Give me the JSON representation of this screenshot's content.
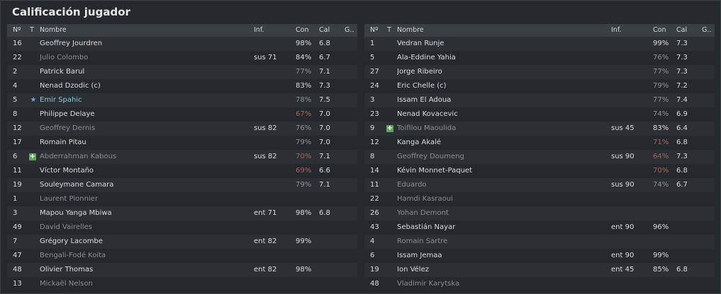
{
  "title": "Calificación jugador",
  "columns": {
    "num": "Nº",
    "t": "T",
    "name": "Nombre",
    "inf": "Inf.",
    "con": "Con",
    "cal": "Cal",
    "g": "G.."
  },
  "colors": {
    "con_red": "#b0605c",
    "con_grey": "#8f9499",
    "highlight": "#7ec8ea",
    "dim": "#8a8f94"
  },
  "left": [
    {
      "num": "16",
      "name": "Geoffrey Jourdren",
      "inf": "",
      "con": "98%",
      "cal": "6.8",
      "style": "",
      "con_style": "",
      "icon": ""
    },
    {
      "num": "22",
      "name": "Julio Colombo",
      "inf": "sus 71",
      "con": "84%",
      "cal": "6.7",
      "style": "dim",
      "con_style": "",
      "icon": ""
    },
    {
      "num": "2",
      "name": "Patrick Barul",
      "inf": "",
      "con": "77%",
      "cal": "7.1",
      "style": "",
      "con_style": "grey",
      "icon": ""
    },
    {
      "num": "4",
      "name": "Nenad Dzodic (c)",
      "inf": "",
      "con": "83%",
      "cal": "7.3",
      "style": "",
      "con_style": "",
      "icon": ""
    },
    {
      "num": "5",
      "name": "Emir Spahic",
      "inf": "",
      "con": "78%",
      "cal": "7.5",
      "style": "hl",
      "con_style": "grey",
      "icon": "star-icon"
    },
    {
      "num": "8",
      "name": "Philippe Delaye",
      "inf": "",
      "con": "67%",
      "cal": "7.0",
      "style": "",
      "con_style": "red",
      "icon": ""
    },
    {
      "num": "12",
      "name": "Geoffrey Dernis",
      "inf": "sus 82",
      "con": "76%",
      "cal": "7.0",
      "style": "dim",
      "con_style": "grey",
      "icon": ""
    },
    {
      "num": "17",
      "name": "Romain Pitau",
      "inf": "",
      "con": "79%",
      "cal": "7.0",
      "style": "",
      "con_style": "grey",
      "icon": ""
    },
    {
      "num": "6",
      "name": "Abderrahman Kabous",
      "inf": "sus 82",
      "con": "70%",
      "cal": "7.1",
      "style": "dim",
      "con_style": "red",
      "icon": "plus-icon"
    },
    {
      "num": "11",
      "name": "Víctor Montaño",
      "inf": "",
      "con": "69%",
      "cal": "6.6",
      "style": "",
      "con_style": "red",
      "icon": ""
    },
    {
      "num": "19",
      "name": "Souleymane Camara",
      "inf": "",
      "con": "79%",
      "cal": "7.1",
      "style": "",
      "con_style": "grey",
      "icon": ""
    },
    {
      "num": "1",
      "name": "Laurent Pionnier",
      "inf": "",
      "con": "",
      "cal": "",
      "style": "dim",
      "con_style": "",
      "icon": ""
    },
    {
      "num": "3",
      "name": "Mapou Yanga Mbiwa",
      "inf": "ent 71",
      "con": "98%",
      "cal": "6.8",
      "style": "",
      "con_style": "",
      "icon": ""
    },
    {
      "num": "49",
      "name": "David Vairelles",
      "inf": "",
      "con": "",
      "cal": "",
      "style": "dim",
      "con_style": "",
      "icon": ""
    },
    {
      "num": "7",
      "name": "Grégory Lacombe",
      "inf": "ent 82",
      "con": "99%",
      "cal": "",
      "style": "",
      "con_style": "",
      "icon": ""
    },
    {
      "num": "47",
      "name": "Bengali-Fodé Koita",
      "inf": "",
      "con": "",
      "cal": "",
      "style": "dim",
      "con_style": "",
      "icon": ""
    },
    {
      "num": "48",
      "name": "Olivier Thomas",
      "inf": "ent 82",
      "con": "98%",
      "cal": "",
      "style": "",
      "con_style": "",
      "icon": ""
    },
    {
      "num": "13",
      "name": "Mickaël Nelson",
      "inf": "",
      "con": "",
      "cal": "",
      "style": "dim",
      "con_style": "",
      "icon": ""
    }
  ],
  "right": [
    {
      "num": "1",
      "name": "Vedran Runje",
      "inf": "",
      "con": "99%",
      "cal": "7.3",
      "style": "",
      "con_style": "",
      "icon": ""
    },
    {
      "num": "5",
      "name": "Ala-Eddine Yahia",
      "inf": "",
      "con": "76%",
      "cal": "7.3",
      "style": "",
      "con_style": "grey",
      "icon": ""
    },
    {
      "num": "27",
      "name": "Jorge Ribeiro",
      "inf": "",
      "con": "77%",
      "cal": "7.3",
      "style": "",
      "con_style": "grey",
      "icon": ""
    },
    {
      "num": "24",
      "name": "Eric Chelle (c)",
      "inf": "",
      "con": "79%",
      "cal": "7.2",
      "style": "",
      "con_style": "grey",
      "icon": ""
    },
    {
      "num": "3",
      "name": "Issam El Adoua",
      "inf": "",
      "con": "77%",
      "cal": "7.4",
      "style": "",
      "con_style": "grey",
      "icon": ""
    },
    {
      "num": "23",
      "name": "Nenad Kovacevic",
      "inf": "",
      "con": "74%",
      "cal": "6.9",
      "style": "",
      "con_style": "grey",
      "icon": ""
    },
    {
      "num": "9",
      "name": "Toifilou Maoulida",
      "inf": "sus 45",
      "con": "83%",
      "cal": "6.4",
      "style": "dim",
      "con_style": "",
      "icon": "plus-icon"
    },
    {
      "num": "12",
      "name": "Kanga Akalé",
      "inf": "",
      "con": "71%",
      "cal": "6.8",
      "style": "",
      "con_style": "red",
      "icon": ""
    },
    {
      "num": "8",
      "name": "Geoffrey Doumeng",
      "inf": "sus 90",
      "con": "64%",
      "cal": "7.3",
      "style": "dim",
      "con_style": "red",
      "icon": ""
    },
    {
      "num": "14",
      "name": "Kévin Monnet-Paquet",
      "inf": "",
      "con": "70%",
      "cal": "6.8",
      "style": "",
      "con_style": "red",
      "icon": ""
    },
    {
      "num": "11",
      "name": "Eduardo",
      "inf": "sus 90",
      "con": "74%",
      "cal": "6.7",
      "style": "dim",
      "con_style": "grey",
      "icon": ""
    },
    {
      "num": "22",
      "name": "Hamdi Kasraoui",
      "inf": "",
      "con": "",
      "cal": "",
      "style": "dim",
      "con_style": "",
      "icon": ""
    },
    {
      "num": "26",
      "name": "Yohan Demont",
      "inf": "",
      "con": "",
      "cal": "",
      "style": "dim",
      "con_style": "",
      "icon": ""
    },
    {
      "num": "43",
      "name": "Sebastián Nayar",
      "inf": "ent 90",
      "con": "96%",
      "cal": "",
      "style": "",
      "con_style": "",
      "icon": ""
    },
    {
      "num": "4",
      "name": "Romain Sartre",
      "inf": "",
      "con": "",
      "cal": "",
      "style": "dim",
      "con_style": "",
      "icon": ""
    },
    {
      "num": "6",
      "name": "Issam Jemaa",
      "inf": "ent 90",
      "con": "99%",
      "cal": "",
      "style": "",
      "con_style": "",
      "icon": ""
    },
    {
      "num": "19",
      "name": "Ion Vélez",
      "inf": "ent 45",
      "con": "85%",
      "cal": "6.8",
      "style": "",
      "con_style": "",
      "icon": ""
    },
    {
      "num": "48",
      "name": "Vladimir Karytska",
      "inf": "",
      "con": "",
      "cal": "",
      "style": "dim",
      "con_style": "",
      "icon": ""
    }
  ]
}
